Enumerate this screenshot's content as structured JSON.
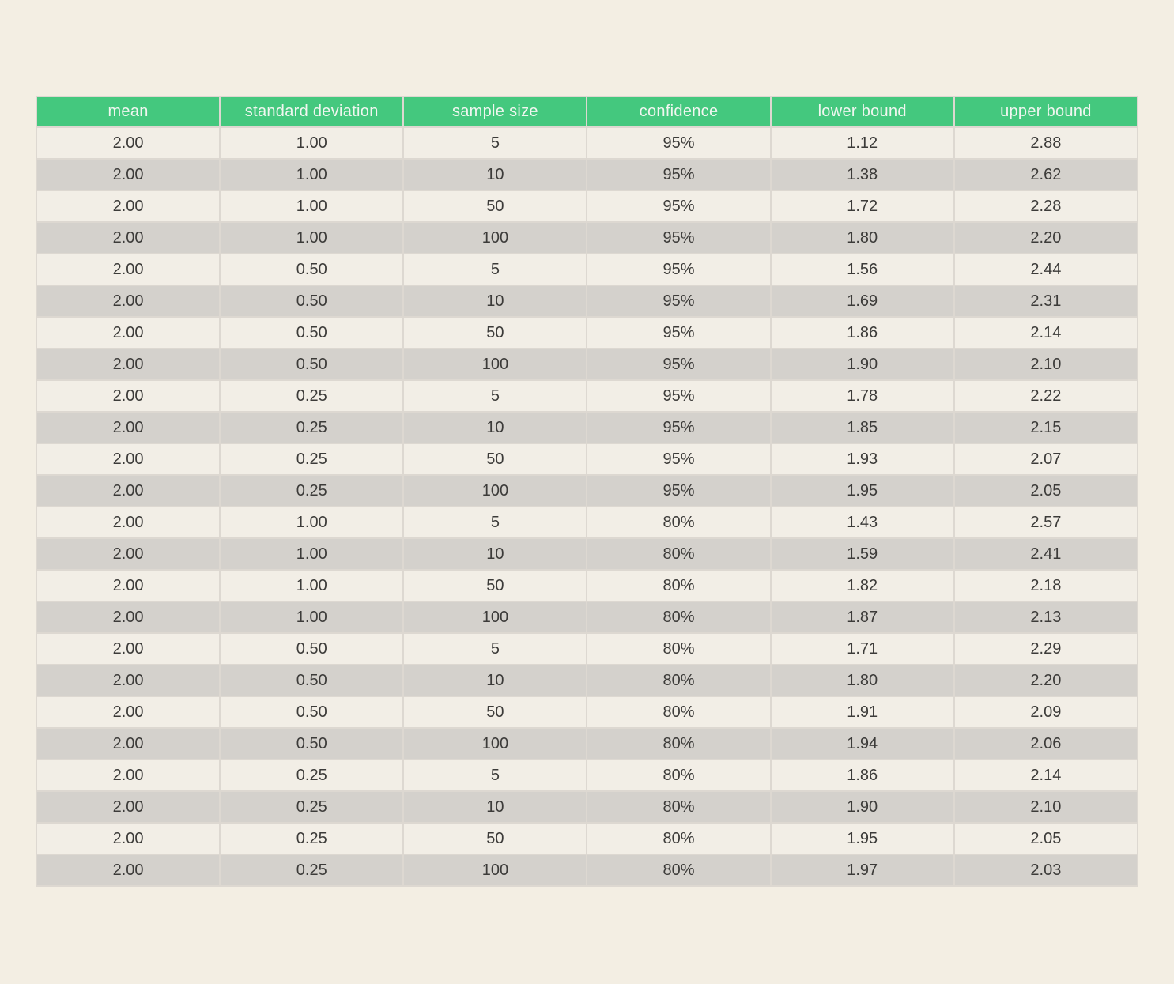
{
  "page": {
    "background_color": "#f3eee3"
  },
  "table": {
    "columns": [
      "mean",
      "standard deviation",
      "sample size",
      "confidence",
      "lower bound",
      "upper bound"
    ],
    "rows": [
      [
        "2.00",
        "1.00",
        "5",
        "95%",
        "1.12",
        "2.88"
      ],
      [
        "2.00",
        "1.00",
        "10",
        "95%",
        "1.38",
        "2.62"
      ],
      [
        "2.00",
        "1.00",
        "50",
        "95%",
        "1.72",
        "2.28"
      ],
      [
        "2.00",
        "1.00",
        "100",
        "95%",
        "1.80",
        "2.20"
      ],
      [
        "2.00",
        "0.50",
        "5",
        "95%",
        "1.56",
        "2.44"
      ],
      [
        "2.00",
        "0.50",
        "10",
        "95%",
        "1.69",
        "2.31"
      ],
      [
        "2.00",
        "0.50",
        "50",
        "95%",
        "1.86",
        "2.14"
      ],
      [
        "2.00",
        "0.50",
        "100",
        "95%",
        "1.90",
        "2.10"
      ],
      [
        "2.00",
        "0.25",
        "5",
        "95%",
        "1.78",
        "2.22"
      ],
      [
        "2.00",
        "0.25",
        "10",
        "95%",
        "1.85",
        "2.15"
      ],
      [
        "2.00",
        "0.25",
        "50",
        "95%",
        "1.93",
        "2.07"
      ],
      [
        "2.00",
        "0.25",
        "100",
        "95%",
        "1.95",
        "2.05"
      ],
      [
        "2.00",
        "1.00",
        "5",
        "80%",
        "1.43",
        "2.57"
      ],
      [
        "2.00",
        "1.00",
        "10",
        "80%",
        "1.59",
        "2.41"
      ],
      [
        "2.00",
        "1.00",
        "50",
        "80%",
        "1.82",
        "2.18"
      ],
      [
        "2.00",
        "1.00",
        "100",
        "80%",
        "1.87",
        "2.13"
      ],
      [
        "2.00",
        "0.50",
        "5",
        "80%",
        "1.71",
        "2.29"
      ],
      [
        "2.00",
        "0.50",
        "10",
        "80%",
        "1.80",
        "2.20"
      ],
      [
        "2.00",
        "0.50",
        "50",
        "80%",
        "1.91",
        "2.09"
      ],
      [
        "2.00",
        "0.50",
        "100",
        "80%",
        "1.94",
        "2.06"
      ],
      [
        "2.00",
        "0.25",
        "5",
        "80%",
        "1.86",
        "2.14"
      ],
      [
        "2.00",
        "0.25",
        "10",
        "80%",
        "1.90",
        "2.10"
      ],
      [
        "2.00",
        "0.25",
        "50",
        "80%",
        "1.95",
        "2.05"
      ],
      [
        "2.00",
        "0.25",
        "100",
        "80%",
        "1.97",
        "2.03"
      ]
    ],
    "colors": {
      "header_bg": "#44c87e",
      "header_text": "#f1f6f0",
      "row_light": "#f2eee6",
      "row_dark": "#d4d1cc",
      "border": "#ddd8d1",
      "cell_text": "#3c3b39",
      "page_bg": "#f3eee3"
    }
  },
  "chart_data": {
    "type": "table",
    "title": "",
    "columns": [
      "mean",
      "standard deviation",
      "sample size",
      "confidence",
      "lower bound",
      "upper bound"
    ],
    "rows": [
      [
        2.0,
        1.0,
        5,
        "95%",
        1.12,
        2.88
      ],
      [
        2.0,
        1.0,
        10,
        "95%",
        1.38,
        2.62
      ],
      [
        2.0,
        1.0,
        50,
        "95%",
        1.72,
        2.28
      ],
      [
        2.0,
        1.0,
        100,
        "95%",
        1.8,
        2.2
      ],
      [
        2.0,
        0.5,
        5,
        "95%",
        1.56,
        2.44
      ],
      [
        2.0,
        0.5,
        10,
        "95%",
        1.69,
        2.31
      ],
      [
        2.0,
        0.5,
        50,
        "95%",
        1.86,
        2.14
      ],
      [
        2.0,
        0.5,
        100,
        "95%",
        1.9,
        2.1
      ],
      [
        2.0,
        0.25,
        5,
        "95%",
        1.78,
        2.22
      ],
      [
        2.0,
        0.25,
        10,
        "95%",
        1.85,
        2.15
      ],
      [
        2.0,
        0.25,
        50,
        "95%",
        1.93,
        2.07
      ],
      [
        2.0,
        0.25,
        100,
        "95%",
        1.95,
        2.05
      ],
      [
        2.0,
        1.0,
        5,
        "80%",
        1.43,
        2.57
      ],
      [
        2.0,
        1.0,
        10,
        "80%",
        1.59,
        2.41
      ],
      [
        2.0,
        1.0,
        50,
        "80%",
        1.82,
        2.18
      ],
      [
        2.0,
        1.0,
        100,
        "80%",
        1.87,
        2.13
      ],
      [
        2.0,
        0.5,
        5,
        "80%",
        1.71,
        2.29
      ],
      [
        2.0,
        0.5,
        10,
        "80%",
        1.8,
        2.2
      ],
      [
        2.0,
        0.5,
        50,
        "80%",
        1.91,
        2.09
      ],
      [
        2.0,
        0.5,
        100,
        "80%",
        1.94,
        2.06
      ],
      [
        2.0,
        0.25,
        5,
        "80%",
        1.86,
        2.14
      ],
      [
        2.0,
        0.25,
        10,
        "80%",
        1.9,
        2.1
      ],
      [
        2.0,
        0.25,
        50,
        "80%",
        1.95,
        2.05
      ],
      [
        2.0,
        0.25,
        100,
        "80%",
        1.97,
        2.03
      ]
    ],
    "layout": {
      "header_fill": "#44c87e",
      "alternating_row_fills": [
        "#f2eee6",
        "#d4d1cc"
      ],
      "cell_alignment": "center",
      "grid": true
    }
  }
}
